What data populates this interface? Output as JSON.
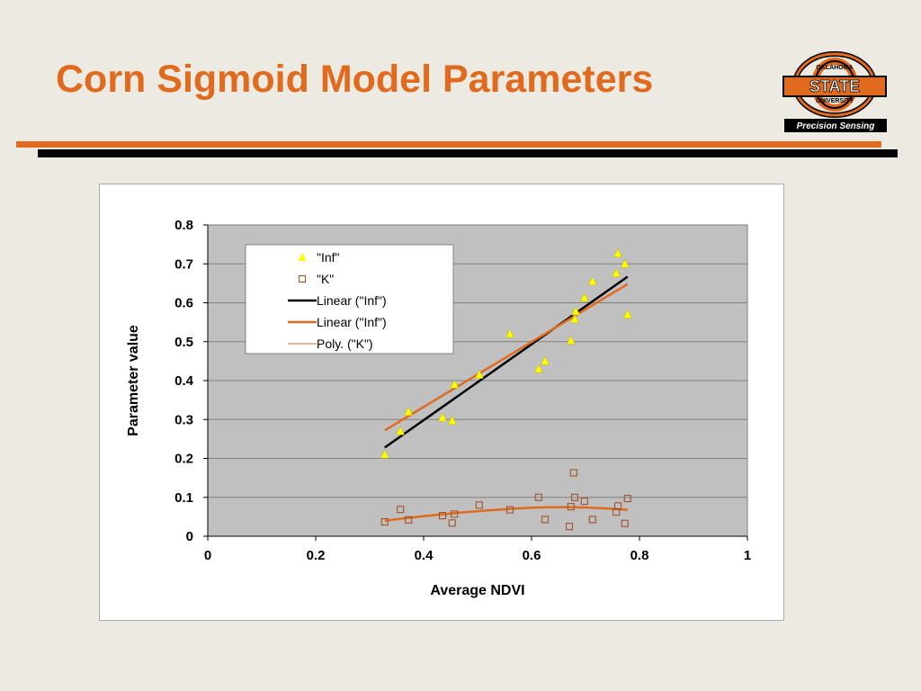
{
  "slide": {
    "title": "Corn Sigmoid Model Parameters"
  },
  "logo": {
    "arc_text": "OKLAHOMA",
    "main_text": "STATE",
    "sub_text": "UNIVERSITY",
    "badge_text": "Precision Sensing",
    "colors": {
      "orange": "#e06a1e",
      "black": "#000000"
    }
  },
  "colors": {
    "accent": "#e06a1e",
    "plot_background": "#c0c0c0",
    "inf_marker": "#ffff00",
    "k_marker": "#a0522d",
    "fit_black": "#000000",
    "fit_orange": "#e06a1e"
  },
  "chart_data": {
    "type": "scatter",
    "title": "",
    "xlabel": "Average NDVI",
    "ylabel": "Parameter value",
    "xlim": [
      0,
      1
    ],
    "ylim": [
      0,
      0.8
    ],
    "x_ticks": [
      "0",
      "0.2",
      "0.4",
      "0.6",
      "0.8",
      "1"
    ],
    "y_ticks": [
      "0",
      "0.1",
      "0.2",
      "0.3",
      "0.4",
      "0.5",
      "0.6",
      "0.7",
      "0.8"
    ],
    "grid": "horizontal",
    "legend_position": "top-left",
    "legend": [
      {
        "label": "\"Inf\"",
        "kind": "triangle",
        "color": "#ffff00"
      },
      {
        "label": "\"K\"",
        "kind": "square",
        "color": "#a0522d"
      },
      {
        "label": "Linear (\"Inf\")",
        "kind": "line-thick",
        "color": "#000000"
      },
      {
        "label": "Linear (\"Inf\")",
        "kind": "line-thick",
        "color": "#e06a1e"
      },
      {
        "label": "Poly. (\"K\")",
        "kind": "line-thin",
        "color": "#e06a1e"
      }
    ],
    "series": [
      {
        "name": "\"Inf\"",
        "marker": "triangle",
        "color": "#ffff00",
        "points": [
          [
            0.328,
            0.21
          ],
          [
            0.357,
            0.27
          ],
          [
            0.372,
            0.32
          ],
          [
            0.435,
            0.305
          ],
          [
            0.453,
            0.297
          ],
          [
            0.457,
            0.39
          ],
          [
            0.503,
            0.415
          ],
          [
            0.56,
            0.52
          ],
          [
            0.613,
            0.43
          ],
          [
            0.625,
            0.45
          ],
          [
            0.673,
            0.503
          ],
          [
            0.68,
            0.558
          ],
          [
            0.682,
            0.578
          ],
          [
            0.698,
            0.613
          ],
          [
            0.713,
            0.655
          ],
          [
            0.757,
            0.676
          ],
          [
            0.76,
            0.727
          ],
          [
            0.773,
            0.7
          ],
          [
            0.778,
            0.57
          ]
        ]
      },
      {
        "name": "\"K\"",
        "marker": "square",
        "color": "#a0522d",
        "points": [
          [
            0.328,
            0.037
          ],
          [
            0.357,
            0.069
          ],
          [
            0.372,
            0.042
          ],
          [
            0.435,
            0.053
          ],
          [
            0.453,
            0.034
          ],
          [
            0.457,
            0.057
          ],
          [
            0.503,
            0.08
          ],
          [
            0.56,
            0.068
          ],
          [
            0.613,
            0.1
          ],
          [
            0.625,
            0.043
          ],
          [
            0.67,
            0.025
          ],
          [
            0.673,
            0.076
          ],
          [
            0.678,
            0.163
          ],
          [
            0.68,
            0.1
          ],
          [
            0.698,
            0.09
          ],
          [
            0.713,
            0.043
          ],
          [
            0.757,
            0.062
          ],
          [
            0.76,
            0.078
          ],
          [
            0.773,
            0.033
          ],
          [
            0.778,
            0.097
          ]
        ]
      }
    ],
    "trendlines": [
      {
        "name": "Linear (\"Inf\")",
        "color": "#000000",
        "width": 2.5,
        "kind": "linear",
        "x": [
          0.328,
          0.778
        ],
        "y": [
          0.228,
          0.667
        ]
      },
      {
        "name": "Linear (\"Inf\")",
        "color": "#e06a1e",
        "width": 2.5,
        "kind": "linear",
        "x": [
          0.328,
          0.778
        ],
        "y": [
          0.272,
          0.648
        ]
      },
      {
        "name": "Poly. (\"K\")",
        "color": "#e06a1e",
        "width": 2.5,
        "kind": "poly",
        "x": [
          0.328,
          0.4,
          0.5,
          0.6,
          0.67,
          0.72,
          0.778
        ],
        "y": [
          0.04,
          0.052,
          0.065,
          0.074,
          0.075,
          0.073,
          0.068
        ]
      }
    ]
  }
}
